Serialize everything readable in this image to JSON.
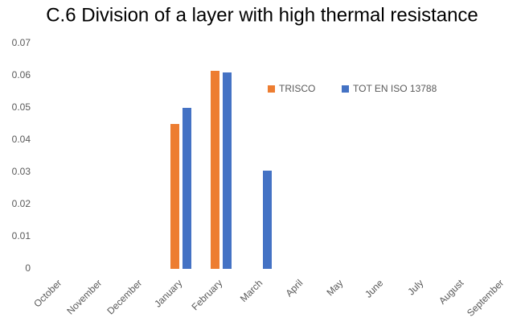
{
  "chart_data": {
    "type": "bar",
    "title": "C.6 Division of a layer with high thermal resistance",
    "categories": [
      "October",
      "November",
      "December",
      "January",
      "February",
      "March",
      "April",
      "May",
      "June",
      "July",
      "August",
      "September"
    ],
    "series": [
      {
        "name": "TRISCO",
        "color": "#ed7d31",
        "values": [
          0,
          0,
          0,
          0.045,
          0.0615,
          0,
          0,
          0,
          0,
          0,
          0,
          0
        ]
      },
      {
        "name": "TOT EN ISO 13788",
        "color": "#4472c4",
        "values": [
          0,
          0,
          0,
          0.05,
          0.061,
          0.0305,
          0,
          0,
          0,
          0,
          0,
          0
        ]
      }
    ],
    "ylim": [
      0,
      0.07
    ],
    "yticks": [
      0,
      0.01,
      0.02,
      0.03,
      0.04,
      0.05,
      0.06,
      0.07
    ],
    "grid": false,
    "legend": "top-right"
  }
}
